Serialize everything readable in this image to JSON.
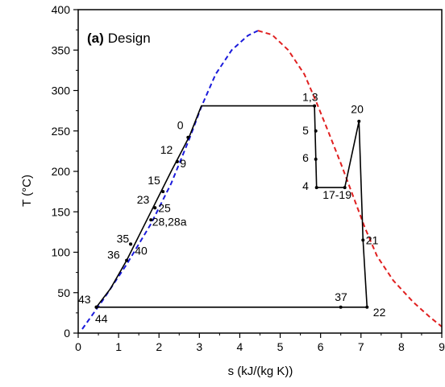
{
  "chart_data": {
    "type": "line",
    "title_bold": "(a)",
    "title": "Design",
    "xlabel": "s  (kJ/(kg K))",
    "ylabel": "T  (°C)",
    "xlim": [
      0,
      9
    ],
    "ylim": [
      0,
      400
    ],
    "xticks": [
      0,
      1,
      2,
      3,
      4,
      5,
      6,
      7,
      8,
      9
    ],
    "yticks": [
      0,
      50,
      100,
      150,
      200,
      250,
      300,
      350,
      400
    ],
    "grid": false,
    "colors": {
      "saturated_liquid": "#1a1adb",
      "saturated_vapor": "#e02020",
      "cycle": "#000000",
      "frame": "#000000"
    },
    "series": [
      {
        "role": "saturated-liquid-line",
        "style": "dashed",
        "points": [
          [
            0.1,
            5
          ],
          [
            0.6,
            40
          ],
          [
            1.2,
            85
          ],
          [
            1.8,
            135
          ],
          [
            2.3,
            185
          ],
          [
            2.75,
            240
          ],
          [
            3.05,
            280
          ],
          [
            3.4,
            320
          ],
          [
            3.8,
            350
          ],
          [
            4.2,
            368
          ],
          [
            4.45,
            374
          ]
        ]
      },
      {
        "role": "saturated-vapor-line",
        "style": "dashed",
        "points": [
          [
            4.45,
            374
          ],
          [
            4.8,
            369
          ],
          [
            5.2,
            350
          ],
          [
            5.6,
            320
          ],
          [
            5.9,
            285
          ],
          [
            6.2,
            248
          ],
          [
            6.5,
            210
          ],
          [
            6.8,
            170
          ],
          [
            7.1,
            130
          ],
          [
            7.4,
            95
          ],
          [
            7.8,
            65
          ],
          [
            8.3,
            38
          ],
          [
            8.7,
            20
          ],
          [
            9.0,
            8
          ]
        ]
      },
      {
        "role": "cycle",
        "style": "solid",
        "points": [
          [
            0.45,
            32
          ],
          [
            0.8,
            55
          ],
          [
            1.2,
            90
          ],
          [
            1.8,
            150
          ],
          [
            2.3,
            200
          ],
          [
            2.75,
            243
          ],
          [
            3.05,
            281
          ],
          [
            5.85,
            281
          ],
          [
            5.9,
            180
          ],
          [
            6.6,
            180
          ],
          [
            6.95,
            262
          ],
          [
            7.05,
            115
          ],
          [
            7.15,
            32
          ],
          [
            0.45,
            32
          ]
        ]
      }
    ],
    "state_points": [
      {
        "label": "0",
        "x": 2.72,
        "y": 242,
        "lx": 2.45,
        "ly": 252
      },
      {
        "label": "12",
        "x": 2.45,
        "y": 212,
        "lx": 2.03,
        "ly": 222
      },
      {
        "label": "9",
        "x": 2.45,
        "y": 212,
        "lx": 2.52,
        "ly": 205
      },
      {
        "label": "15",
        "x": 2.1,
        "y": 175,
        "lx": 1.72,
        "ly": 184
      },
      {
        "label": "23",
        "x": 1.9,
        "y": 155,
        "lx": 1.45,
        "ly": 160
      },
      {
        "label": "25",
        "x": 1.9,
        "y": 155,
        "lx": 1.98,
        "ly": 150
      },
      {
        "label": "28,28a",
        "x": 1.8,
        "y": 140,
        "lx": 1.83,
        "ly": 133
      },
      {
        "label": "35",
        "x": 1.3,
        "y": 110,
        "lx": 0.95,
        "ly": 112
      },
      {
        "label": "36",
        "x": 1.2,
        "y": 90,
        "lx": 0.72,
        "ly": 92
      },
      {
        "label": "40",
        "x": 1.3,
        "y": 110,
        "lx": 1.4,
        "ly": 97
      },
      {
        "label": "1,3",
        "x": 5.85,
        "y": 281,
        "lx": 5.55,
        "ly": 287
      },
      {
        "label": "5",
        "x": 5.88,
        "y": 250,
        "lx": 5.55,
        "ly": 246
      },
      {
        "label": "6",
        "x": 5.88,
        "y": 215,
        "lx": 5.55,
        "ly": 212
      },
      {
        "label": "4",
        "x": 5.9,
        "y": 180,
        "lx": 5.55,
        "ly": 177
      },
      {
        "label": "17-19",
        "x": 6.6,
        "y": 180,
        "lx": 6.05,
        "ly": 166
      },
      {
        "label": "20",
        "x": 6.95,
        "y": 262,
        "lx": 6.75,
        "ly": 272
      },
      {
        "label": "21",
        "x": 7.05,
        "y": 115,
        "lx": 7.12,
        "ly": 110
      },
      {
        "label": "37",
        "x": 6.5,
        "y": 32,
        "lx": 6.35,
        "ly": 40
      },
      {
        "label": "22",
        "x": 7.15,
        "y": 32,
        "lx": 7.3,
        "ly": 21
      },
      {
        "label": "43",
        "x": 0.45,
        "y": 32,
        "lx": 0.0,
        "ly": 37
      },
      {
        "label": "44",
        "x": 0.45,
        "y": 32,
        "lx": 0.42,
        "ly": 13
      }
    ]
  }
}
